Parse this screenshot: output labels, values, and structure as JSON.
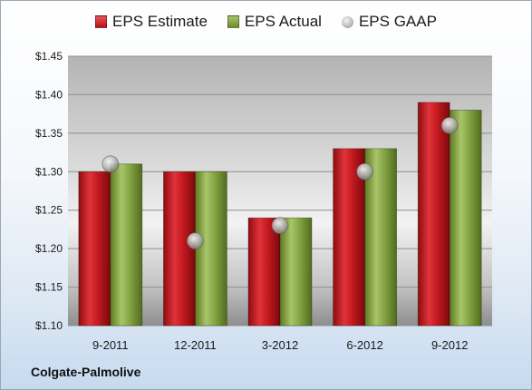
{
  "chart_data": {
    "type": "bar",
    "categories": [
      "9-2011",
      "12-2011",
      "3-2012",
      "6-2012",
      "9-2012"
    ],
    "series": [
      {
        "name": "EPS Estimate",
        "color": "#c0161b",
        "values": [
          1.3,
          1.3,
          1.24,
          1.33,
          1.39
        ]
      },
      {
        "name": "EPS Actual",
        "color": "#7a9a3a",
        "values": [
          1.31,
          1.3,
          1.24,
          1.33,
          1.38
        ]
      }
    ],
    "markers": {
      "name": "EPS GAAP",
      "color": "#b0b0b0",
      "values": [
        1.31,
        1.21,
        1.23,
        1.3,
        1.36
      ]
    },
    "ylim": [
      1.1,
      1.45
    ],
    "yticks": [
      "$1.10",
      "$1.15",
      "$1.20",
      "$1.25",
      "$1.30",
      "$1.35",
      "$1.40",
      "$1.45"
    ],
    "grid": true,
    "legend": "top-center"
  },
  "company": "Colgate-Palmolive"
}
